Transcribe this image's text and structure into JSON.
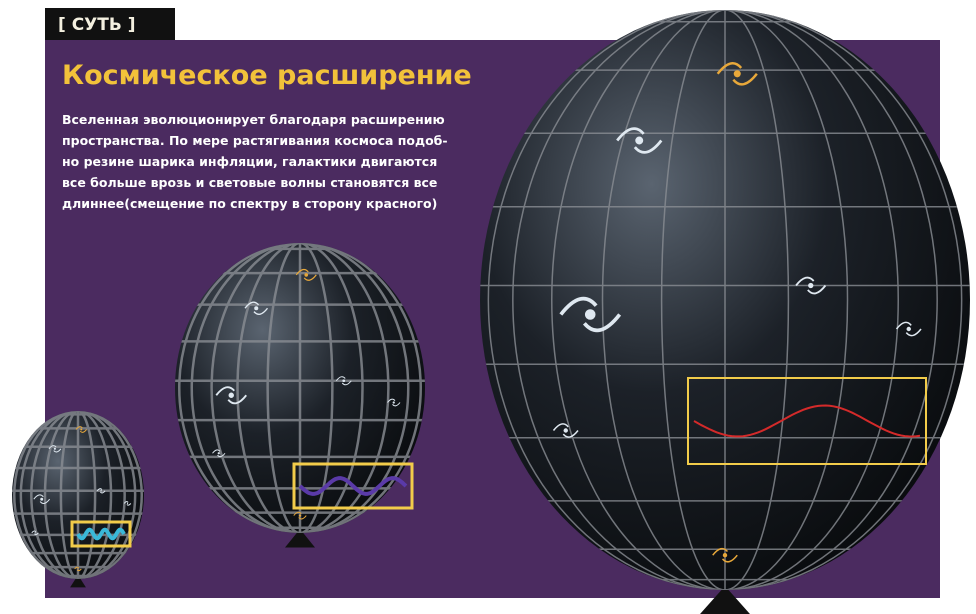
{
  "header": {
    "tag": "[ СУТЬ ]",
    "title": "Космическое расширение"
  },
  "body": [
    "Вселенная эволюционирует благодаря расширению",
    "пространства. По мере растягивания космоса подоб-",
    "но резине шарика инфляции, галактики двигаются",
    "все больше врозь и световые волны становятся все",
    "длиннее(смещение по спектру в сторону красного)"
  ]
}
